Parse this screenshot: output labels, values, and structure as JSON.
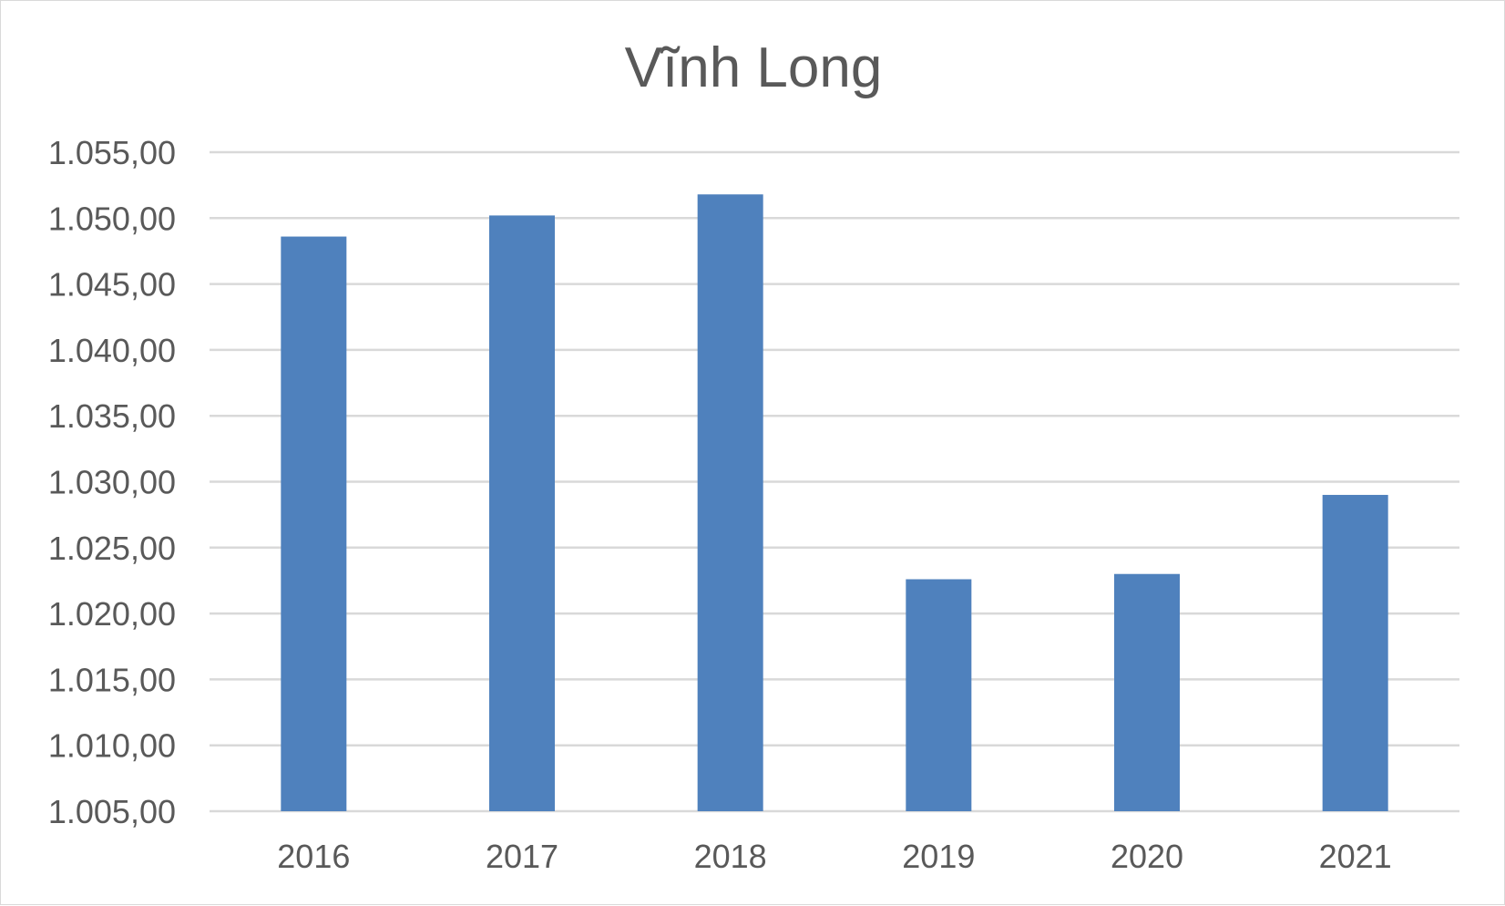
{
  "chart_data": {
    "type": "bar",
    "title": "Vĩnh Long",
    "categories": [
      "2016",
      "2017",
      "2018",
      "2019",
      "2020",
      "2021"
    ],
    "values": [
      1048.6,
      1050.2,
      1051.8,
      1022.6,
      1023.0,
      1029.0
    ],
    "xlabel": "",
    "ylabel": "",
    "ylim": [
      1005,
      1055
    ],
    "yticks": [
      1005,
      1010,
      1015,
      1020,
      1025,
      1030,
      1035,
      1040,
      1045,
      1050,
      1055
    ],
    "ytick_labels": [
      "1.005,00",
      "1.010,00",
      "1.015,00",
      "1.020,00",
      "1.025,00",
      "1.030,00",
      "1.035,00",
      "1.040,00",
      "1.045,00",
      "1.050,00",
      "1.055,00"
    ],
    "grid": true,
    "legend": "none",
    "bar_color": "#4f81bd"
  }
}
